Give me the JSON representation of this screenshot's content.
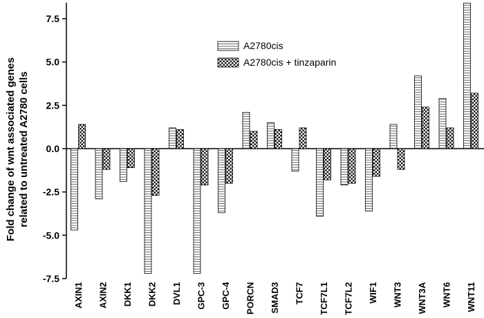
{
  "chart_data": {
    "type": "bar",
    "title": "",
    "xlabel": "",
    "ylabel_lines": [
      "Fold change of wnt associated genes",
      "related to untreated A2780 cells"
    ],
    "ylim": [
      -7.5,
      8.5
    ],
    "yticks": [
      7.5,
      5.0,
      2.5,
      0.0,
      -2.5,
      -5.0,
      -7.5
    ],
    "ytick_labels": [
      "7.5",
      "5.0",
      "2.5",
      "0.0",
      "-2.5",
      "-5.0",
      "-7.5"
    ],
    "categories": [
      "AXIN1",
      "AXIN2",
      "DKK1",
      "DKK2",
      "DVL1",
      "GPC-3",
      "GPC-4",
      "PORCN",
      "SMAD3",
      "TCF7",
      "TCF7L1",
      "TCF7L2",
      "WIF1",
      "WNT3",
      "WNT3A",
      "WNT6",
      "WNT11"
    ],
    "series": [
      {
        "name": "A2780cis",
        "pattern": "horizontal-stripes",
        "values": [
          -4.7,
          -2.9,
          -1.9,
          -7.2,
          1.2,
          -7.2,
          -3.7,
          2.1,
          1.5,
          -1.3,
          -3.9,
          -2.1,
          -3.6,
          1.4,
          4.2,
          2.9,
          8.4
        ]
      },
      {
        "name": "A2780cis + tinzaparin",
        "pattern": "checkerboard",
        "values": [
          1.4,
          -1.2,
          -1.1,
          -2.7,
          1.1,
          -2.1,
          -2.0,
          1.0,
          1.1,
          1.2,
          -1.8,
          -2.0,
          -1.6,
          -1.2,
          2.4,
          1.2,
          3.2
        ]
      }
    ],
    "legend_position": "top-center",
    "grid": false
  }
}
